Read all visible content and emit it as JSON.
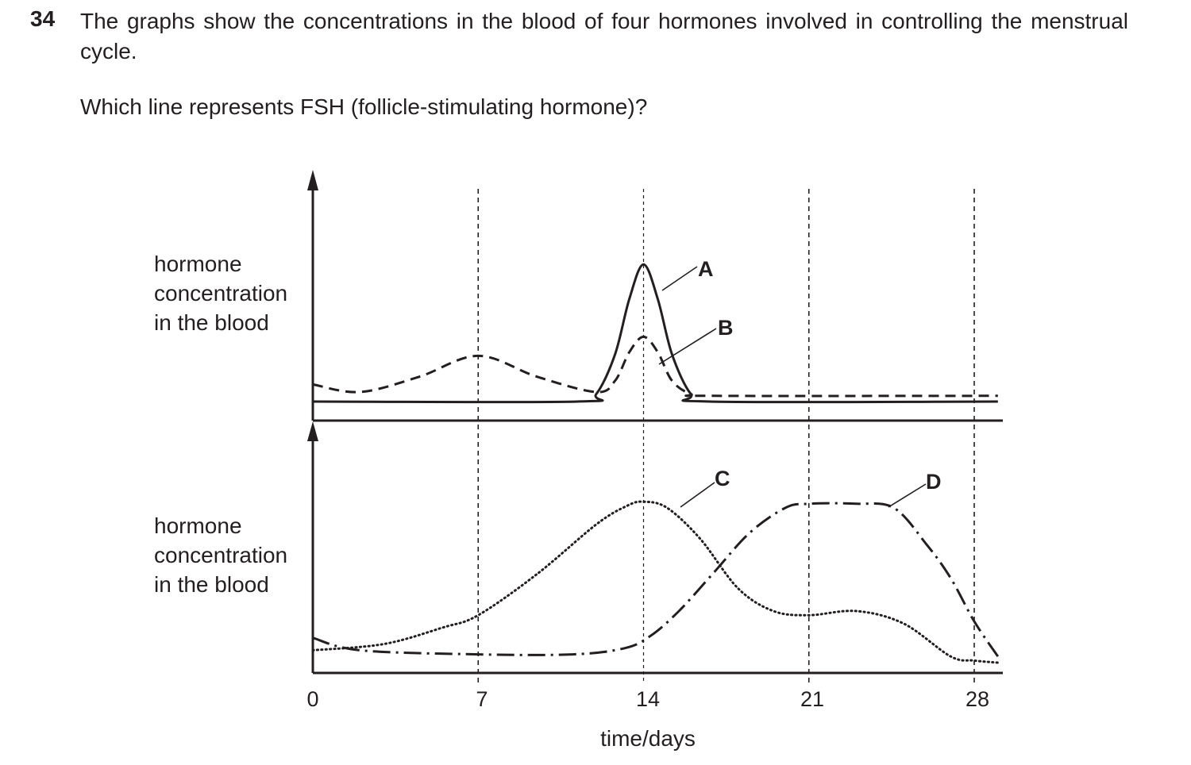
{
  "question": {
    "number": "34",
    "text": "The graphs show the concentrations in the blood of four hormones involved in controlling the menstrual cycle.",
    "ask": "Which line represents FSH (follicle-stimulating hormone)?"
  },
  "chart_data": [
    {
      "type": "line",
      "panel": "top",
      "ylabel": [
        "hormone",
        "concentration",
        "in the blood"
      ],
      "xlim": [
        0,
        29
      ],
      "ylim": [
        0,
        10
      ],
      "series": [
        {
          "name": "A",
          "style": "solid",
          "x": [
            0,
            11.2,
            12,
            12.8,
            13.4,
            14,
            14.6,
            15.2,
            16,
            16.8,
            29
          ],
          "y": [
            1,
            1,
            1.4,
            3.5,
            6.4,
            8.2,
            6.4,
            3.5,
            1.4,
            1,
            1
          ]
        },
        {
          "name": "B",
          "style": "dashed",
          "x": [
            0,
            2,
            4.5,
            7,
            9.5,
            12,
            12.8,
            13.4,
            14,
            14.6,
            15.2,
            16,
            17,
            29
          ],
          "y": [
            1.9,
            1.5,
            2.3,
            3.4,
            2.3,
            1.5,
            2.1,
            3.6,
            4.4,
            3.6,
            2.1,
            1.4,
            1.3,
            1.3
          ]
        }
      ]
    },
    {
      "type": "line",
      "panel": "bottom",
      "ylabel": [
        "hormone",
        "concentration",
        "in the blood"
      ],
      "xlabel": "time/days",
      "xticks": [
        "0",
        "7",
        "14",
        "21",
        "28"
      ],
      "xlim": [
        0,
        29
      ],
      "ylim": [
        0,
        10
      ],
      "series": [
        {
          "name": "C",
          "style": "dotted",
          "x": [
            0,
            3,
            5.5,
            7,
            9.5,
            12,
            13.3,
            14,
            15,
            16.4,
            18,
            19.5,
            21,
            23,
            25,
            27,
            28,
            29
          ],
          "y": [
            1.1,
            1.4,
            2.2,
            2.8,
            4.8,
            7.2,
            8.1,
            8.3,
            8,
            6.5,
            4.1,
            3.0,
            2.8,
            3.0,
            2.4,
            0.8,
            0.6,
            0.5
          ]
        },
        {
          "name": "D",
          "style": "dashdot",
          "x": [
            0,
            2,
            7,
            11,
            13.2,
            14.3,
            15.5,
            17,
            18.5,
            20,
            21,
            23,
            24.6,
            26,
            27,
            28,
            29
          ],
          "y": [
            1.7,
            1.1,
            0.9,
            0.9,
            1.2,
            1.8,
            3.0,
            4.9,
            6.8,
            8.0,
            8.2,
            8.2,
            8.0,
            6.2,
            4.6,
            2.5,
            0.8
          ]
        }
      ]
    }
  ]
}
